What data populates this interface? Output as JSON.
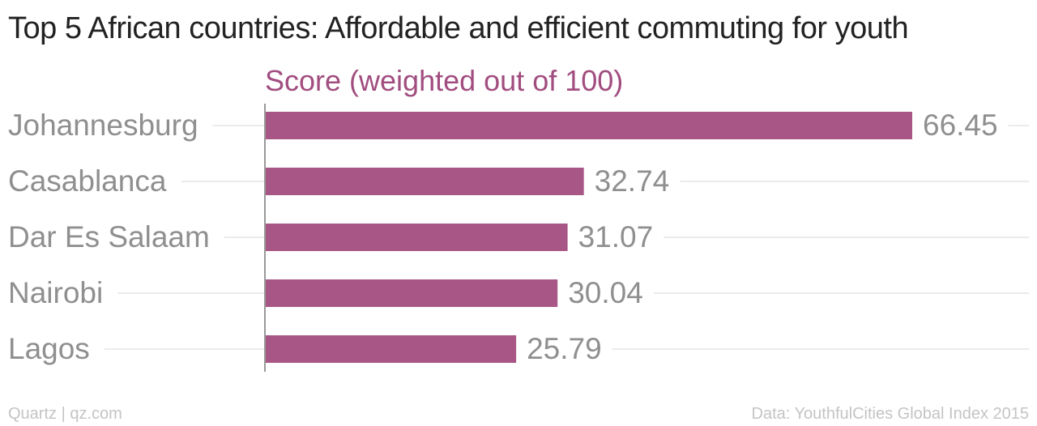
{
  "chart_data": {
    "type": "bar",
    "orientation": "horizontal",
    "title": "Top 5 African countries: Affordable and efficient commuting for youth",
    "xlabel": "Score (weighted out of 100)",
    "ylabel": "",
    "categories": [
      "Johannesburg",
      "Casablanca",
      "Dar Es Salaam",
      "Nairobi",
      "Lagos"
    ],
    "values": [
      66.45,
      32.74,
      31.07,
      30.04,
      25.79
    ],
    "value_labels": [
      "66.45",
      "32.74",
      "31.07",
      "30.04",
      "25.79"
    ],
    "xlim": [
      0,
      68.5
    ],
    "grid": true,
    "legend": "none",
    "colors": {
      "bar": "#a85685",
      "axis_title": "#a14d7f",
      "label": "#8f8f8f",
      "gridline": "#ebebeb",
      "baseline": "#999999"
    }
  },
  "footer": {
    "source_left": "Quartz | qz.com",
    "source_right": "Data: YouthfulCities Global Index 2015"
  }
}
